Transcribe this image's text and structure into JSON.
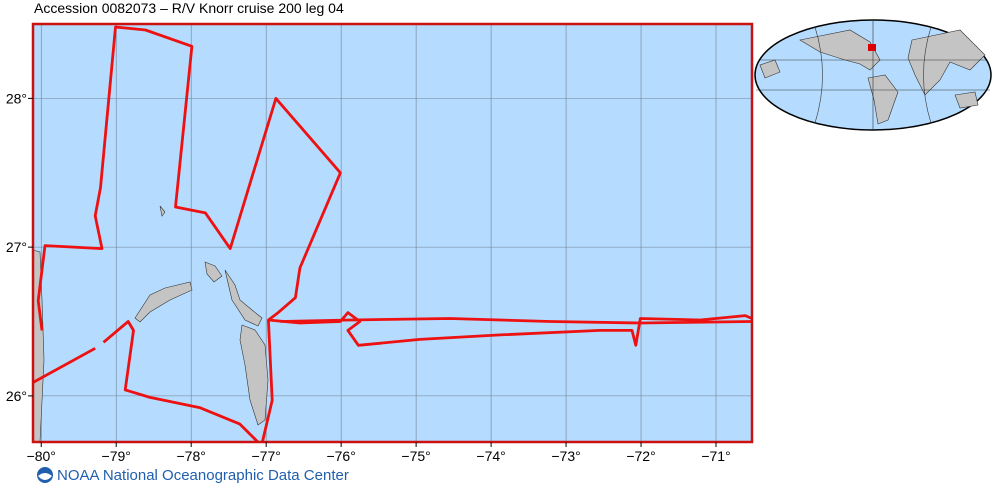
{
  "title": "Accession 0082073 – R/V Knorr cruise 200 leg 04",
  "footer": "NOAA National Oceanographic Data Center",
  "map": {
    "xlim": [
      -80.11,
      -70.52
    ],
    "ylim": [
      25.69,
      28.5
    ],
    "xticks": [
      {
        "value": -80,
        "label": "−80°"
      },
      {
        "value": -79,
        "label": "−79°"
      },
      {
        "value": -78,
        "label": "−78°"
      },
      {
        "value": -77,
        "label": "−77°"
      },
      {
        "value": -76,
        "label": "−76°"
      },
      {
        "value": -75,
        "label": "−75°"
      },
      {
        "value": -74,
        "label": "−74°"
      },
      {
        "value": -73,
        "label": "−73°"
      },
      {
        "value": -72,
        "label": "−72°"
      },
      {
        "value": -71,
        "label": "−71°"
      }
    ],
    "yticks": [
      {
        "value": 26,
        "label": "26°"
      },
      {
        "value": 27,
        "label": "27°"
      },
      {
        "value": 28,
        "label": "28°"
      }
    ],
    "grid": true,
    "track": {
      "color": "#ee1111",
      "lon": [
        -80.11,
        -79.28,
        null,
        -79.17,
        -78.84,
        -78.77,
        -78.88,
        -78.55,
        -77.88,
        -77.35,
        -77.11,
        null,
        -77.05,
        -76.92,
        -76.97,
        -76.84,
        -76.61,
        -76.55,
        -76.01,
        -76.87,
        -77.48,
        -77.81,
        -78.21,
        -77.99,
        -78.61,
        -79.01,
        -79.21,
        -79.28,
        -79.19,
        -79.95,
        -80.04,
        -79.99,
        null,
        -76.97,
        -76.55,
        -76.01,
        -75.91,
        -75.75,
        -75.91,
        -75.77,
        -74.95,
        -73.88,
        -72.55,
        -72.12,
        -72.07,
        -72.01,
        -71.21,
        -70.61,
        -70.52,
        null,
        -70.52,
        -72.01,
        -73.21,
        -74.55,
        -75.88,
        -76.81
      ],
      "lat": [
        26.09,
        26.32,
        null,
        26.36,
        26.5,
        26.44,
        26.04,
        25.99,
        25.92,
        25.81,
        25.69,
        null,
        25.69,
        25.97,
        26.51,
        26.56,
        26.66,
        26.86,
        27.5,
        28.0,
        26.99,
        27.23,
        27.27,
        28.35,
        28.46,
        28.48,
        27.4,
        27.21,
        26.99,
        27.01,
        26.64,
        26.44,
        null,
        26.51,
        26.49,
        26.5,
        26.56,
        26.5,
        26.44,
        26.34,
        26.38,
        26.41,
        26.44,
        26.44,
        26.34,
        26.52,
        26.51,
        26.54,
        26.52,
        null,
        26.5,
        26.49,
        26.5,
        26.52,
        26.51,
        26.5
      ]
    }
  }
}
